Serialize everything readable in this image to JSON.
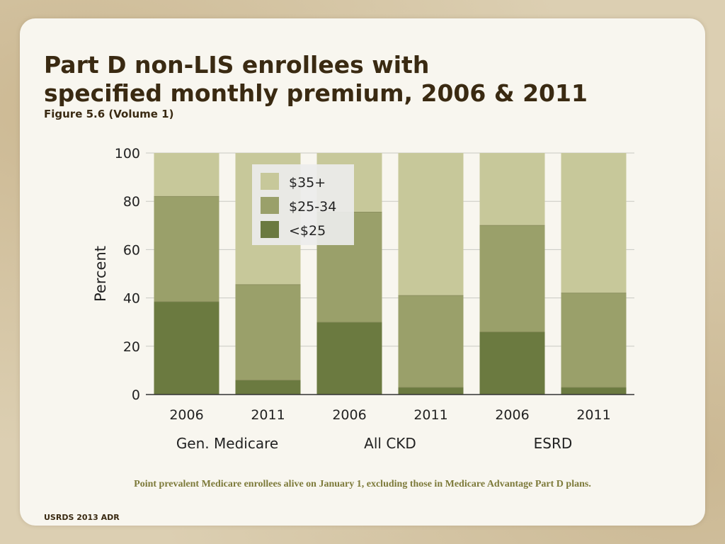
{
  "slide": {
    "title_line1": "Part D non-LIS enrollees with",
    "title_line2": "specified monthly premium, 2006 & 2011",
    "subtitle": "Figure 5.6 (Volume 1)",
    "footnote": "Point prevalent Medicare enrollees alive on January 1, excluding those in Medicare Advantage Part D plans.",
    "source": "USRDS 2013 ADR"
  },
  "chart_data": {
    "type": "bar",
    "stacked": true,
    "ylabel": "Percent",
    "ylim": [
      0,
      100
    ],
    "yticks": [
      0,
      20,
      40,
      60,
      80,
      100
    ],
    "grid": true,
    "legend_position": "top-left-inside",
    "categories": [
      "2006",
      "2011",
      "2006",
      "2011",
      "2006",
      "2011"
    ],
    "groups": [
      {
        "label": "Gen. Medicare",
        "categories": [
          "2006",
          "2011"
        ]
      },
      {
        "label": "All CKD",
        "categories": [
          "2006",
          "2011"
        ]
      },
      {
        "label": "ESRD",
        "categories": [
          "2006",
          "2011"
        ]
      }
    ],
    "series": [
      {
        "name": "<$25",
        "color": "#6b7a40",
        "values": [
          38.5,
          6,
          30,
          3,
          26,
          3
        ]
      },
      {
        "name": "$25-34",
        "color": "#9aa06a",
        "values": [
          43.5,
          39.5,
          45.5,
          38,
          44,
          39
        ]
      },
      {
        "name": "$35+",
        "color": "#c7c89a",
        "values": [
          18,
          54.5,
          24.5,
          59,
          30,
          58
        ]
      }
    ],
    "legend_order": [
      "$35+",
      "$25-34",
      "<$25"
    ]
  }
}
